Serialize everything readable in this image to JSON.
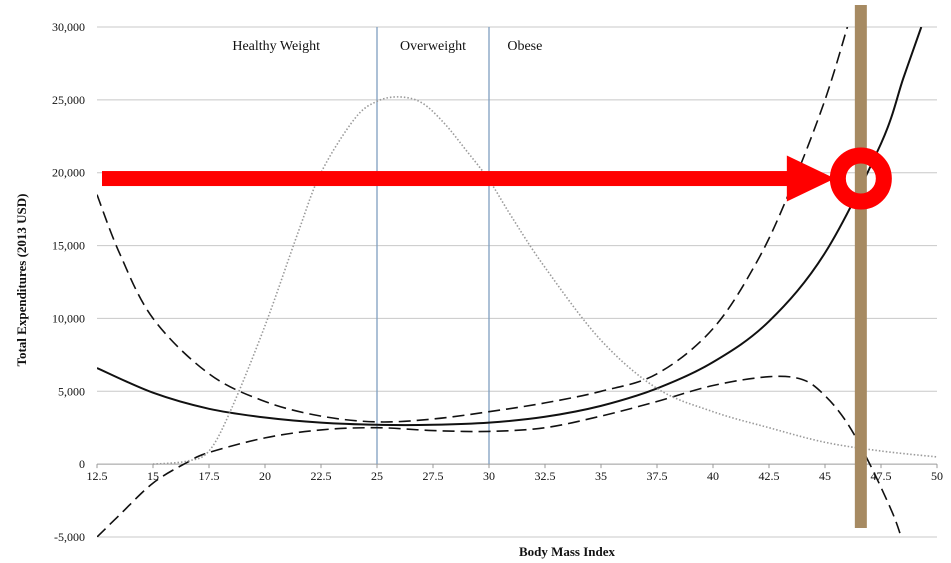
{
  "chart_data": {
    "type": "line",
    "title": "",
    "xlabel": "Body Mass Index",
    "ylabel": "Total Expenditures (2013 USD)",
    "xlim": [
      12.5,
      50
    ],
    "ylim": [
      -5000,
      30000
    ],
    "x_ticks": [
      12.5,
      15,
      17.5,
      20,
      22.5,
      25,
      27.5,
      30,
      32.5,
      35,
      37.5,
      40,
      42.5,
      45,
      47.5,
      50
    ],
    "x_tick_labels": [
      "12.5",
      "15",
      "17.5",
      "20",
      "22.5",
      "25",
      "27.5",
      "30",
      "32.5",
      "35",
      "37.5",
      "40",
      "42.5",
      "45",
      "47.5",
      "50"
    ],
    "y_ticks": [
      -5000,
      0,
      5000,
      10000,
      15000,
      20000,
      25000,
      30000
    ],
    "y_tick_labels": [
      "-5,000",
      "0",
      "5,000",
      "10,000",
      "15,000",
      "20,000",
      "25,000",
      "30,000"
    ],
    "grid": "horizontal",
    "legend": "none",
    "category_dividers": [
      {
        "x": 25,
        "color": "#7f9fc0"
      },
      {
        "x": 30,
        "color": "#7f9fc0"
      }
    ],
    "category_labels": [
      {
        "text": "Healthy Weight",
        "x": 20.5
      },
      {
        "text": "Overweight",
        "x": 27.5
      },
      {
        "text": "Obese",
        "x": 31.6
      }
    ],
    "series": [
      {
        "style": "solid",
        "color": "#111111",
        "points": [
          [
            12.5,
            6600
          ],
          [
            15,
            4900
          ],
          [
            17.5,
            3800
          ],
          [
            20,
            3200
          ],
          [
            22.5,
            2850
          ],
          [
            25,
            2700
          ],
          [
            27.5,
            2700
          ],
          [
            30,
            2850
          ],
          [
            32.5,
            3250
          ],
          [
            35,
            4000
          ],
          [
            37.5,
            5200
          ],
          [
            40,
            7000
          ],
          [
            42.5,
            9800
          ],
          [
            45,
            14500
          ],
          [
            47.5,
            22000
          ],
          [
            48.5,
            26500
          ],
          [
            49.3,
            30000
          ]
        ]
      },
      {
        "style": "dashed",
        "color": "#111111",
        "points": [
          [
            12.5,
            18500
          ],
          [
            13.5,
            14500
          ],
          [
            15,
            10000
          ],
          [
            17.5,
            6200
          ],
          [
            20,
            4300
          ],
          [
            22.5,
            3300
          ],
          [
            25,
            2900
          ],
          [
            27.5,
            3100
          ],
          [
            30,
            3600
          ],
          [
            32.5,
            4200
          ],
          [
            35,
            5000
          ],
          [
            37.5,
            6200
          ],
          [
            40,
            9300
          ],
          [
            42,
            14000
          ],
          [
            43.5,
            19000
          ],
          [
            45,
            25000
          ],
          [
            46,
            30000
          ]
        ]
      },
      {
        "style": "dashed",
        "color": "#111111",
        "points": [
          [
            12.5,
            -5000
          ],
          [
            13.5,
            -3500
          ],
          [
            15,
            -1300
          ],
          [
            16.5,
            100
          ],
          [
            17.5,
            800
          ],
          [
            20,
            1800
          ],
          [
            22.5,
            2350
          ],
          [
            25,
            2500
          ],
          [
            27.5,
            2300
          ],
          [
            30,
            2250
          ],
          [
            32.5,
            2500
          ],
          [
            35,
            3300
          ],
          [
            37.5,
            4300
          ],
          [
            40,
            5400
          ],
          [
            42.5,
            6000
          ],
          [
            44,
            5800
          ],
          [
            45,
            4700
          ],
          [
            46,
            2800
          ],
          [
            47,
            0
          ],
          [
            48,
            -3300
          ],
          [
            48.4,
            -5000
          ]
        ]
      },
      {
        "style": "dotted",
        "color": "#9a9a9a",
        "points": [
          [
            15,
            0
          ],
          [
            16.5,
            200
          ],
          [
            17.5,
            900
          ],
          [
            18.5,
            3800
          ],
          [
            20,
            9500
          ],
          [
            21.5,
            16000
          ],
          [
            22.5,
            20000
          ],
          [
            24,
            23700
          ],
          [
            25,
            24900
          ],
          [
            26,
            25200
          ],
          [
            27,
            24800
          ],
          [
            28,
            23400
          ],
          [
            29,
            21500
          ],
          [
            30,
            19500
          ],
          [
            31,
            17000
          ],
          [
            32.5,
            13500
          ],
          [
            35,
            8500
          ],
          [
            37.5,
            5200
          ],
          [
            40,
            3600
          ],
          [
            42.5,
            2500
          ],
          [
            45,
            1500
          ],
          [
            47.5,
            900
          ],
          [
            50,
            500
          ]
        ]
      }
    ],
    "annotations": [
      {
        "type": "arrow",
        "color": "#ff0000",
        "from": [
          12.5,
          19600
        ],
        "to": [
          46.6,
          19600
        ]
      },
      {
        "type": "circle",
        "color": "#ff0000",
        "x": 46.6,
        "y": 19600
      },
      {
        "type": "vertical-bar",
        "color": "#a68a62",
        "x": 46.6
      }
    ]
  }
}
